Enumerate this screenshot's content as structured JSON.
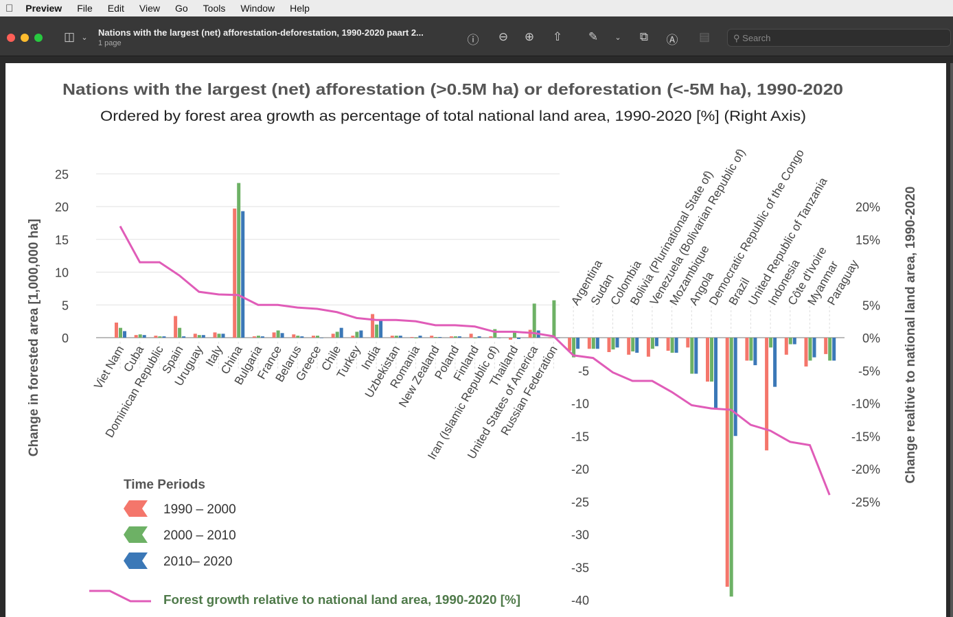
{
  "menubar": {
    "app": "Preview",
    "items": [
      "File",
      "Edit",
      "View",
      "Go",
      "Tools",
      "Window",
      "Help"
    ]
  },
  "toolbar": {
    "title": "Nations with the largest (net) afforestation-deforestation, 1990-2020 paart 2...",
    "subtitle": "1 page",
    "search_placeholder": "Search"
  },
  "chart_data": {
    "type": "bar",
    "title": "Nations with the largest (net) afforestation (>0.5M ha) or deforestation (<-5M ha), 1990-2020",
    "subtitle": "Ordered by forest area growth as percentage of total national land area, 1990-2020 [%] (Right Axis)",
    "ylabel": "Change in forested area  [1,000,000 ha]",
    "y2label": "Change realtive to national land area, 1990-2020",
    "ylim": [
      -40,
      25
    ],
    "y_ticks": [
      "25",
      "20",
      "15",
      "10",
      "5",
      "0",
      "-5",
      "-10",
      "-15",
      "-20",
      "-25",
      "-30",
      "-35",
      "-40"
    ],
    "y_tick_values": [
      25,
      20,
      15,
      10,
      5,
      0,
      -5,
      -10,
      -15,
      -20,
      -25,
      -30,
      -35,
      -40
    ],
    "y2_ticks": [
      "20%",
      "15%",
      "5%",
      "0%",
      "-5%",
      "-10%",
      "-15%",
      "-20%",
      "-25%"
    ],
    "y2_tick_values": [
      20,
      15,
      5,
      0,
      -5,
      -10,
      -15,
      -20,
      -25
    ],
    "legend_title": "Time Periods",
    "categories": [
      "Viet Nam",
      "Cuba",
      "Dominican Republic",
      "Spain",
      "Uruguay",
      "Italy",
      "China",
      "Bulgaria",
      "France",
      "Belarus",
      "Greece",
      "Chile",
      "Turkey",
      "India",
      "Uzbekistan",
      "Romania",
      "New Zealand",
      "Poland",
      "Finland",
      "Iran (Islamic Republic of)",
      "Thailand",
      "United States of America",
      "Russian Federation",
      "Argentina",
      "Sudan",
      "Colombia",
      "Bolivia (Plurinational State of)",
      "Venezuela (Bolivarian Republic of)",
      "Mozambique",
      "Angola",
      "Democratic Republic of the Congo",
      "Brazil",
      "United Republic of Tanzania",
      "Indonesia",
      "Côte d'Ivoire",
      "Myanmar",
      "Paraguay"
    ],
    "series": [
      {
        "name": "1990 – 2000",
        "color": "#f4766b",
        "values": [
          2.3,
          0.4,
          0.3,
          3.3,
          0.6,
          0.8,
          19.7,
          0.2,
          0.8,
          0.5,
          0.3,
          0.6,
          0.3,
          3.6,
          0.3,
          0.1,
          0.3,
          0.2,
          0.6,
          0.2,
          -0.3,
          1.2,
          0.0,
          -2.0,
          -1.7,
          -2.2,
          -2.6,
          -2.9,
          -2.0,
          -1.5,
          -6.7,
          -38.0,
          -3.5,
          -17.2,
          -2.6,
          -4.4,
          -2.5
        ]
      },
      {
        "name": "2000 – 2010",
        "color": "#6db165",
        "values": [
          1.5,
          0.5,
          0.2,
          1.5,
          0.4,
          0.6,
          23.6,
          0.3,
          1.1,
          0.3,
          0.3,
          0.9,
          0.9,
          2.0,
          0.3,
          -0.1,
          0.1,
          0.2,
          -0.1,
          1.3,
          0.8,
          5.2,
          5.7,
          -3.0,
          -1.7,
          -1.8,
          -2.1,
          -1.7,
          -2.3,
          -5.5,
          -6.7,
          -39.5,
          -3.5,
          -1.5,
          -1.0,
          -3.5,
          -3.5
        ]
      },
      {
        "name": "2010– 2020",
        "color": "#3b78b7",
        "values": [
          1.0,
          0.4,
          0.2,
          0.2,
          0.4,
          0.6,
          19.3,
          0.2,
          0.7,
          0.2,
          0.0,
          1.5,
          1.1,
          2.6,
          0.3,
          0.3,
          0.1,
          0.2,
          0.2,
          0.0,
          -0.2,
          1.1,
          0.0,
          -1.7,
          -1.7,
          -1.5,
          -2.3,
          -1.3,
          -2.3,
          -5.5,
          -10.8,
          -15.0,
          -4.2,
          -7.5,
          -1.0,
          -3.0,
          -3.5
        ]
      }
    ],
    "line": {
      "name": "Forest growth relative to national land area, 1990-2020 [%]",
      "color": "#e05cb8",
      "values": [
        17.0,
        11.5,
        11.5,
        9.5,
        7.0,
        6.6,
        6.5,
        5.0,
        5.0,
        4.6,
        4.4,
        3.9,
        3.0,
        2.7,
        2.7,
        2.5,
        1.9,
        1.9,
        1.7,
        0.9,
        0.9,
        0.7,
        0.2,
        -2.7,
        -3.1,
        -5.3,
        -6.6,
        -6.6,
        -8.3,
        -10.3,
        -10.8,
        -11.0,
        -13.3,
        -14.2,
        -15.9,
        -16.4,
        -24.0
      ]
    }
  }
}
